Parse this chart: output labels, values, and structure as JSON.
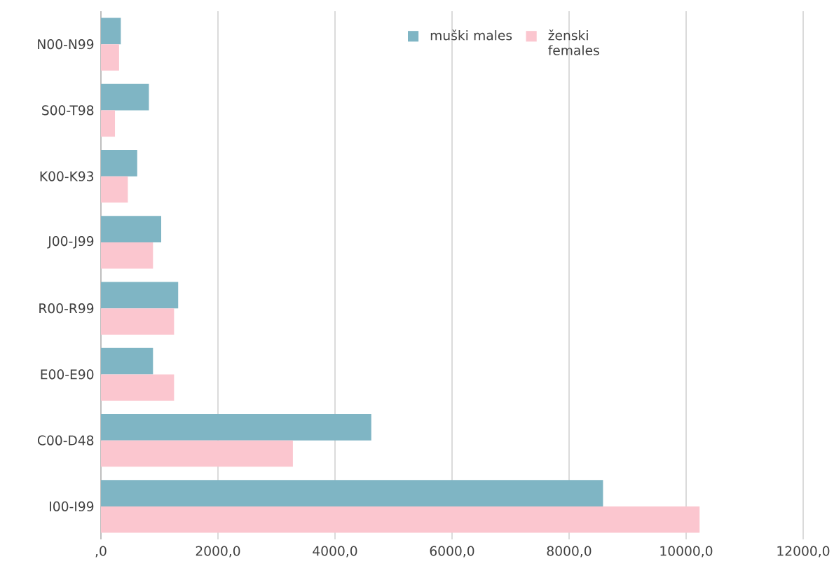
{
  "chart_data": {
    "type": "bar",
    "orientation": "horizontal",
    "categories": [
      "N00-N99",
      "S00-T98",
      "K00-K93",
      "J00-J99",
      "R00-R99",
      "E00-E90",
      "C00-D48",
      "I00-I99"
    ],
    "series": [
      {
        "name": "muški males",
        "color": "#7fb5c4",
        "values": [
          340,
          820,
          620,
          1030,
          1320,
          890,
          4620,
          8580
        ]
      },
      {
        "name": "ženski females",
        "color": "#fbc6cf",
        "values": [
          310,
          240,
          460,
          890,
          1250,
          1250,
          3280,
          10230
        ]
      }
    ],
    "xlim": [
      0,
      12000
    ],
    "xticks": [
      {
        "value": 0,
        "label": ",0"
      },
      {
        "value": 2000,
        "label": "2000,0"
      },
      {
        "value": 4000,
        "label": "4000,0"
      },
      {
        "value": 6000,
        "label": "6000,0"
      },
      {
        "value": 8000,
        "label": "8000,0"
      },
      {
        "value": 10000,
        "label": "10000,0"
      },
      {
        "value": 12000,
        "label": "12000,0"
      }
    ],
    "grid": "x",
    "legend": "top"
  }
}
